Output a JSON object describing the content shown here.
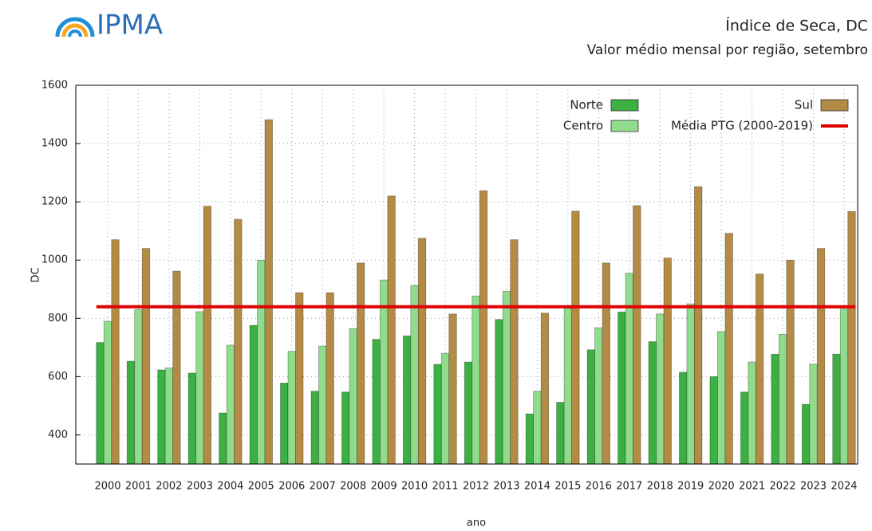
{
  "chart_data": {
    "type": "bar",
    "brand": "IPMA",
    "title": "Índice de Seca, DC",
    "subtitle": "Valor médio mensal por região, setembro",
    "x_label": "ano",
    "y_label": "DC",
    "categories": [
      "2000",
      "2001",
      "2002",
      "2003",
      "2004",
      "2005",
      "2006",
      "2007",
      "2008",
      "2009",
      "2010",
      "2011",
      "2012",
      "2013",
      "2014",
      "2015",
      "2016",
      "2017",
      "2018",
      "2019",
      "2020",
      "2021",
      "2022",
      "2023",
      "2024"
    ],
    "series": [
      {
        "name": "Norte",
        "color": "#3cb043",
        "values": [
          717,
          653,
          623,
          612,
          475,
          776,
          578,
          550,
          547,
          728,
          740,
          642,
          650,
          796,
          472,
          512,
          692,
          822,
          720,
          615,
          600,
          547,
          677,
          505,
          677
        ]
      },
      {
        "name": "Centro",
        "color": "#90dc8c",
        "values": [
          790,
          830,
          630,
          823,
          708,
          1000,
          687,
          705,
          765,
          932,
          913,
          680,
          877,
          893,
          550,
          835,
          768,
          955,
          815,
          850,
          755,
          650,
          745,
          643,
          832
        ]
      },
      {
        "name": "Sul",
        "color": "#b38b45",
        "values": [
          1070,
          1040,
          962,
          1185,
          1140,
          1482,
          888,
          888,
          990,
          1220,
          1075,
          815,
          1238,
          1070,
          818,
          1168,
          990,
          1187,
          1007,
          1252,
          1092,
          952,
          1000,
          1040,
          1167
        ]
      }
    ],
    "reference_line": {
      "name": "Média PTG (2000-2019)",
      "color": "#e00000",
      "value": 840
    },
    "ylim": [
      300,
      1600
    ],
    "yticks": [
      400,
      600,
      800,
      1000,
      1200,
      1400,
      1600
    ],
    "grid": true,
    "legend": "top-right"
  }
}
